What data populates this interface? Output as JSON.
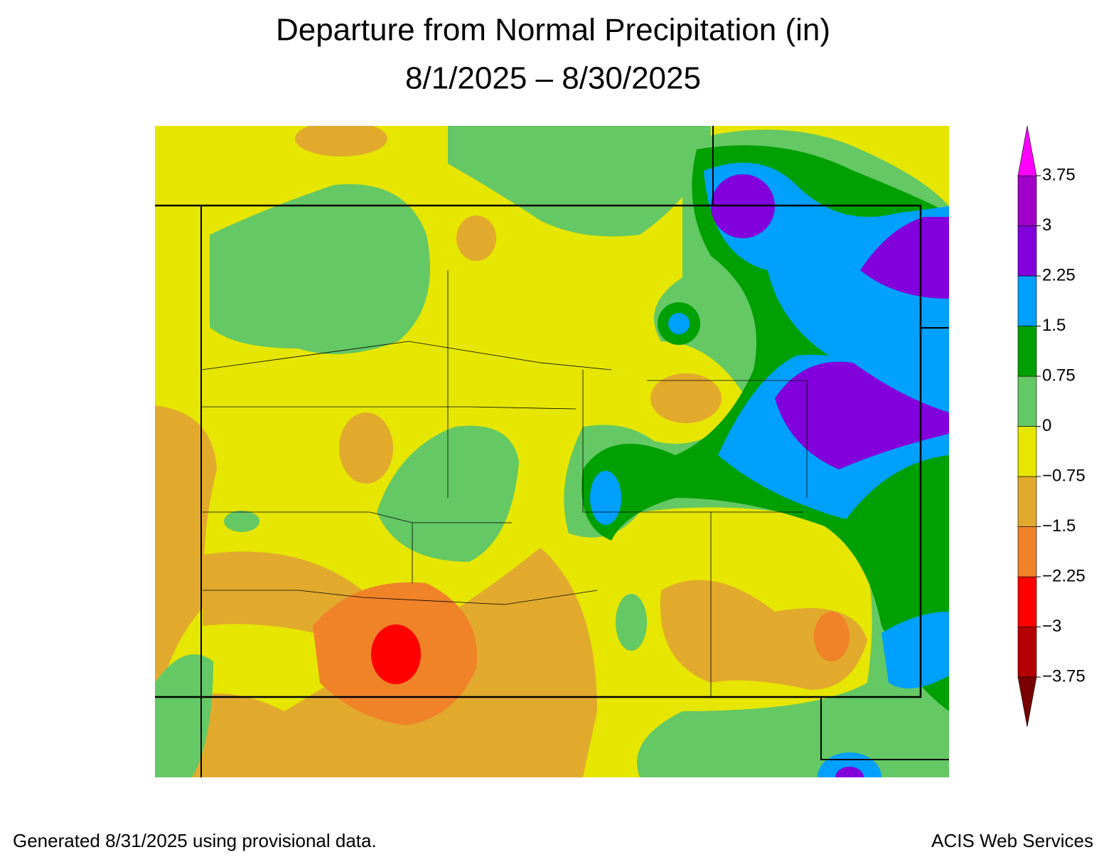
{
  "title": "Departure from Normal Precipitation (in)",
  "subtitle": "8/1/2025 – 8/30/2025",
  "legend": {
    "ticks": [
      {
        "value": -3.75,
        "label": "−3.75"
      },
      {
        "value": -3,
        "label": "−3"
      },
      {
        "value": -2.25,
        "label": "−2.25"
      },
      {
        "value": -1.5,
        "label": "−1.5"
      },
      {
        "value": -0.75,
        "label": "−0.75"
      },
      0,
      0.75,
      1.5,
      2.25,
      3,
      3.75
    ],
    "lim": [
      -3.75,
      3.75
    ],
    "colors": [
      "#b40000",
      "#ff0000",
      "#f08228",
      "#e1aa2d",
      "#e6e600",
      "#64c864",
      "#00a000",
      "#00a0ff",
      "#8200dc",
      "#a000c8"
    ],
    "under_color": "#780000",
    "over_color": "#ff00ff"
  },
  "footer_left": "Generated 8/31/2025 using provisional data.",
  "footer_right": "ACIS Web Services"
}
